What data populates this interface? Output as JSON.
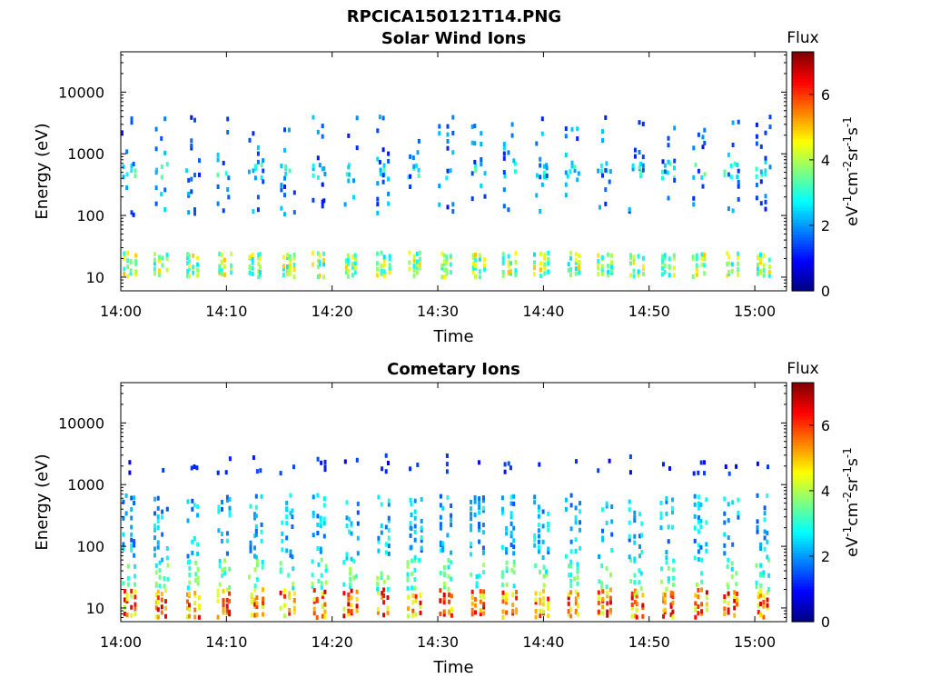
{
  "figure": {
    "title": "RPCICA150121T14.PNG"
  },
  "colors": {
    "colormap": [
      "#00007f",
      "#0000ff",
      "#007fff",
      "#00ffff",
      "#7fff7f",
      "#ffff00",
      "#ff7f00",
      "#ff0000",
      "#7f0000"
    ]
  },
  "chart_data": [
    {
      "type": "heatmap",
      "title": "Solar Wind Ions",
      "xlabel": "Time",
      "ylabel": "Energy (eV)",
      "y_scale": "log",
      "ylim": [
        6,
        45000
      ],
      "xlim": [
        "14:00",
        "15:03"
      ],
      "x_ticks": [
        "14:00",
        "14:10",
        "14:20",
        "14:30",
        "14:40",
        "14:50",
        "15:00"
      ],
      "y_ticks": [
        "10",
        "100",
        "1000",
        "10000"
      ],
      "colorbar": {
        "title": "Flux",
        "label": "eV-1cm-2sr-1s-1",
        "range": [
          0,
          7.3
        ],
        "ticks": [
          "0",
          "2",
          "4",
          "6"
        ]
      },
      "grid": false,
      "scan_period_minutes": 3,
      "bands": [
        {
          "energy_range_ev": [
            10,
            25
          ],
          "flux_range": [
            2.5,
            5
          ]
        },
        {
          "energy_range_ev": [
            400,
            700
          ],
          "flux_range": [
            2,
            3.5
          ]
        },
        {
          "energy_range_ev": [
            100,
            4000
          ],
          "flux_range": [
            1,
            2.5
          ]
        }
      ]
    },
    {
      "type": "heatmap",
      "title": "Cometary Ions",
      "xlabel": "Time",
      "ylabel": "Energy (eV)",
      "y_scale": "log",
      "ylim": [
        6,
        45000
      ],
      "xlim": [
        "14:00",
        "15:03"
      ],
      "x_ticks": [
        "14:00",
        "14:10",
        "14:20",
        "14:30",
        "14:40",
        "14:50",
        "15:00"
      ],
      "y_ticks": [
        "10",
        "100",
        "1000",
        "10000"
      ],
      "colorbar": {
        "title": "Flux",
        "label": "eV-1cm-2sr-1s-1",
        "range": [
          0,
          7.3
        ],
        "ticks": [
          "0",
          "2",
          "4",
          "6"
        ]
      },
      "grid": false,
      "scan_period_minutes": 3,
      "bands": [
        {
          "energy_range_ev": [
            7,
            20
          ],
          "flux_range": [
            4,
            6.8
          ]
        },
        {
          "energy_range_ev": [
            20,
            60
          ],
          "flux_range": [
            2.5,
            4
          ]
        },
        {
          "energy_range_ev": [
            60,
            700
          ],
          "flux_range": [
            1.5,
            3
          ]
        },
        {
          "energy_range_ev": [
            1500,
            3000
          ],
          "flux_range": [
            0.8,
            1.5
          ]
        }
      ]
    }
  ]
}
